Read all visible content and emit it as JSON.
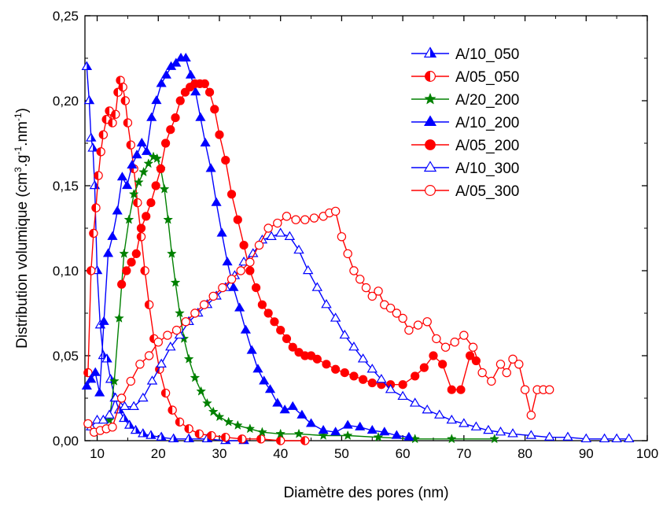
{
  "chart_data": {
    "type": "line",
    "xlabel": "Diamètre des pores (nm)",
    "ylabel_parts": [
      "Distribution volumique (cm",
      "3",
      ".g",
      "-1",
      ".nm",
      "-1",
      ")"
    ],
    "xlim": [
      8,
      100
    ],
    "ylim": [
      0,
      0.25
    ],
    "x_ticks": [
      10,
      20,
      30,
      40,
      50,
      60,
      70,
      80,
      90,
      100
    ],
    "x_tick_labels": [
      "10",
      "20",
      "30",
      "40",
      "50",
      "60",
      "70",
      "80",
      "90",
      "100"
    ],
    "y_ticks": [
      0,
      0.05,
      0.1,
      0.15,
      0.2,
      0.25
    ],
    "y_tick_labels": [
      "0,00",
      "0,05",
      "0,10",
      "0,15",
      "0,20",
      "0,25"
    ],
    "grid": false,
    "legend_position": "top-right",
    "series": [
      {
        "name": "A/10_050",
        "color": "#0000ff",
        "marker": "triangle-half",
        "x": [
          8.3,
          8.7,
          9.0,
          9.3,
          9.6,
          10.0,
          10.5,
          11.0,
          11.6,
          12.2,
          12.9,
          13.6,
          14.4,
          15.3,
          16.3,
          17.5,
          18.8,
          20.5,
          22.5,
          25.0,
          28.0,
          31.0,
          34.0
        ],
        "values": [
          0.22,
          0.2,
          0.178,
          0.172,
          0.15,
          0.1,
          0.068,
          0.05,
          0.048,
          0.036,
          0.025,
          0.018,
          0.013,
          0.009,
          0.006,
          0.004,
          0.003,
          0.002,
          0.001,
          0.001,
          0.001,
          0.0,
          0.0
        ]
      },
      {
        "name": "A/05_050",
        "color": "#ff0000",
        "marker": "circle-half",
        "x": [
          8.5,
          9.0,
          9.4,
          9.8,
          10.2,
          10.6,
          11.0,
          11.5,
          12.0,
          12.5,
          13.0,
          13.4,
          13.8,
          14.2,
          14.6,
          15.0,
          15.5,
          16.0,
          16.6,
          17.2,
          17.8,
          18.5,
          19.3,
          20.2,
          21.2,
          22.3,
          23.5,
          25.0,
          26.7,
          28.7,
          31.0,
          33.7,
          36.8,
          40.0,
          44.0
        ],
        "values": [
          0.04,
          0.1,
          0.122,
          0.137,
          0.156,
          0.17,
          0.18,
          0.189,
          0.194,
          0.187,
          0.192,
          0.205,
          0.212,
          0.208,
          0.2,
          0.187,
          0.174,
          0.16,
          0.14,
          0.12,
          0.1,
          0.08,
          0.06,
          0.042,
          0.028,
          0.018,
          0.011,
          0.007,
          0.004,
          0.003,
          0.002,
          0.001,
          0.001,
          0.0,
          0.0
        ]
      },
      {
        "name": "A/20_200",
        "color": "#008000",
        "marker": "star",
        "x": [
          12.0,
          12.8,
          13.6,
          14.4,
          15.2,
          16.0,
          16.8,
          17.6,
          18.4,
          19.2,
          19.8,
          20.4,
          21.0,
          21.6,
          22.2,
          22.8,
          23.5,
          24.2,
          25.0,
          26.0,
          27.0,
          28.0,
          29.0,
          30.0,
          31.5,
          33.0,
          35.0,
          37.0,
          40.0,
          43.0,
          47.0,
          51.0,
          56.0,
          62.0,
          68.0,
          75.0
        ],
        "values": [
          0.012,
          0.035,
          0.072,
          0.11,
          0.13,
          0.145,
          0.152,
          0.158,
          0.163,
          0.167,
          0.166,
          0.16,
          0.148,
          0.13,
          0.11,
          0.093,
          0.075,
          0.06,
          0.048,
          0.037,
          0.029,
          0.022,
          0.017,
          0.014,
          0.011,
          0.009,
          0.007,
          0.005,
          0.004,
          0.004,
          0.003,
          0.003,
          0.002,
          0.001,
          0.001,
          0.001
        ]
      },
      {
        "name": "A/10_200",
        "color": "#0000ff",
        "marker": "triangle-filled",
        "x": [
          8.3,
          9.0,
          9.7,
          10.4,
          11.1,
          11.8,
          12.5,
          13.3,
          14.1,
          14.9,
          15.7,
          16.5,
          17.3,
          18.1,
          18.9,
          19.7,
          20.5,
          21.3,
          22.1,
          22.9,
          23.7,
          24.5,
          25.3,
          26.1,
          26.9,
          27.7,
          28.6,
          29.5,
          30.4,
          31.3,
          32.3,
          33.3,
          34.3,
          35.3,
          36.3,
          37.3,
          38.3,
          39.5,
          40.7,
          42.0,
          43.5,
          45.0,
          47.0,
          49.0,
          51.0,
          53.0,
          55.0,
          57.0,
          59.0,
          61.0
        ],
        "values": [
          0.032,
          0.036,
          0.04,
          0.028,
          0.07,
          0.11,
          0.12,
          0.135,
          0.155,
          0.15,
          0.162,
          0.168,
          0.175,
          0.17,
          0.19,
          0.2,
          0.21,
          0.215,
          0.22,
          0.222,
          0.225,
          0.225,
          0.215,
          0.205,
          0.19,
          0.175,
          0.16,
          0.14,
          0.122,
          0.105,
          0.09,
          0.078,
          0.065,
          0.053,
          0.042,
          0.035,
          0.03,
          0.022,
          0.018,
          0.02,
          0.015,
          0.01,
          0.006,
          0.005,
          0.009,
          0.008,
          0.006,
          0.005,
          0.003,
          0.002
        ]
      },
      {
        "name": "A/05_200",
        "color": "#ff0000",
        "marker": "circle-filled",
        "x": [
          14.0,
          14.8,
          15.6,
          16.4,
          17.2,
          18.0,
          18.8,
          19.6,
          20.4,
          21.2,
          22.0,
          22.8,
          23.6,
          24.4,
          25.2,
          26.0,
          26.8,
          27.6,
          28.4,
          29.2,
          30.0,
          31.0,
          32.0,
          33.0,
          34.0,
          35.0,
          36.0,
          37.0,
          38.0,
          39.0,
          40.0,
          41.0,
          42.0,
          43.0,
          44.0,
          45.0,
          46.0,
          47.5,
          49.0,
          50.5,
          52.0,
          53.5,
          55.0,
          56.5,
          58.0,
          60.0,
          62.0,
          63.5,
          65.0,
          66.5,
          68.0,
          69.5,
          71.0,
          72.0
        ],
        "values": [
          0.092,
          0.1,
          0.105,
          0.11,
          0.125,
          0.132,
          0.14,
          0.15,
          0.16,
          0.175,
          0.183,
          0.19,
          0.2,
          0.205,
          0.208,
          0.21,
          0.21,
          0.21,
          0.205,
          0.195,
          0.18,
          0.165,
          0.145,
          0.13,
          0.115,
          0.1,
          0.09,
          0.08,
          0.075,
          0.07,
          0.065,
          0.06,
          0.055,
          0.052,
          0.05,
          0.05,
          0.048,
          0.045,
          0.042,
          0.04,
          0.038,
          0.036,
          0.034,
          0.033,
          0.033,
          0.033,
          0.038,
          0.043,
          0.05,
          0.045,
          0.03,
          0.03,
          0.05,
          0.047
        ]
      },
      {
        "name": "A/10_300",
        "color": "#0000ff",
        "marker": "triangle-open",
        "x": [
          9.0,
          10.0,
          11.0,
          12.0,
          13.0,
          14.5,
          16.0,
          17.5,
          19.0,
          20.5,
          22.0,
          23.5,
          25.0,
          26.5,
          28.0,
          29.5,
          31.0,
          32.5,
          34.0,
          35.5,
          37.0,
          38.5,
          40.0,
          41.5,
          43.0,
          44.5,
          46.0,
          47.5,
          49.0,
          50.5,
          52.0,
          53.5,
          55.0,
          56.5,
          58.0,
          60.0,
          62.0,
          64.0,
          66.0,
          68.0,
          70.0,
          72.0,
          74.0,
          76.0,
          78.0,
          81.0,
          84.0,
          87.0,
          90.0,
          93.0,
          95.0,
          97.0
        ],
        "values": [
          0.008,
          0.012,
          0.012,
          0.015,
          0.025,
          0.02,
          0.02,
          0.025,
          0.035,
          0.045,
          0.055,
          0.062,
          0.07,
          0.075,
          0.08,
          0.085,
          0.09,
          0.097,
          0.105,
          0.11,
          0.118,
          0.12,
          0.122,
          0.12,
          0.112,
          0.1,
          0.09,
          0.08,
          0.072,
          0.062,
          0.055,
          0.048,
          0.042,
          0.036,
          0.03,
          0.026,
          0.022,
          0.018,
          0.015,
          0.012,
          0.01,
          0.008,
          0.006,
          0.005,
          0.004,
          0.003,
          0.002,
          0.002,
          0.001,
          0.001,
          0.001,
          0.001
        ]
      },
      {
        "name": "A/05_300",
        "color": "#ff0000",
        "marker": "circle-open",
        "x": [
          8.5,
          9.5,
          10.5,
          11.5,
          12.5,
          14.0,
          15.5,
          17.0,
          18.5,
          20.0,
          21.5,
          23.0,
          24.5,
          26.0,
          27.5,
          29.0,
          30.5,
          32.0,
          33.5,
          35.0,
          36.5,
          38.0,
          39.5,
          41.0,
          42.5,
          44.0,
          45.5,
          47.0,
          48.0,
          49.0,
          50.0,
          51.0,
          52.0,
          53.0,
          54.0,
          55.0,
          56.0,
          57.0,
          58.0,
          59.0,
          60.0,
          61.0,
          62.5,
          64.0,
          65.5,
          67.0,
          68.5,
          70.0,
          71.5,
          73.0,
          74.5,
          76.0,
          77.0,
          78.0,
          79.0,
          80.0,
          81.0,
          82.0,
          83.0,
          84.0
        ],
        "values": [
          0.01,
          0.005,
          0.006,
          0.007,
          0.008,
          0.025,
          0.035,
          0.045,
          0.05,
          0.058,
          0.062,
          0.065,
          0.07,
          0.075,
          0.08,
          0.085,
          0.09,
          0.095,
          0.1,
          0.105,
          0.115,
          0.125,
          0.128,
          0.132,
          0.13,
          0.13,
          0.131,
          0.132,
          0.134,
          0.135,
          0.12,
          0.11,
          0.1,
          0.095,
          0.09,
          0.085,
          0.088,
          0.08,
          0.078,
          0.075,
          0.072,
          0.065,
          0.068,
          0.07,
          0.06,
          0.055,
          0.058,
          0.062,
          0.055,
          0.04,
          0.035,
          0.045,
          0.04,
          0.048,
          0.045,
          0.03,
          0.015,
          0.03,
          0.03,
          0.03
        ]
      }
    ]
  }
}
